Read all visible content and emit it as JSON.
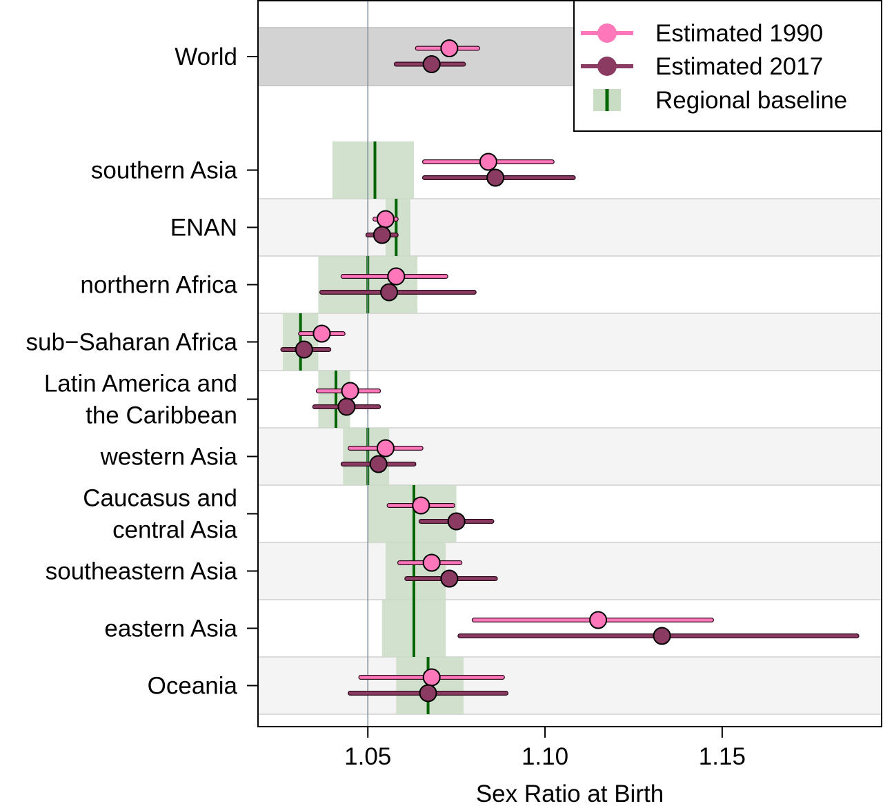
{
  "chart_data": {
    "type": "forest",
    "xlabel": "Sex Ratio at Birth",
    "xlim": [
      1.019,
      1.195
    ],
    "xticks": [
      1.05,
      1.1,
      1.15
    ],
    "xtick_labels": [
      "1.05",
      "1.10",
      "1.15"
    ],
    "reference_line": 1.05,
    "legend": {
      "position": "top-right",
      "entries": [
        "Estimated 1990",
        "Estimated 2017",
        "Regional baseline"
      ]
    },
    "colors": {
      "est1990": "#ff77bb",
      "est2017": "#8b3a62",
      "baseline_line": "#006400",
      "baseline_band": "#c9dcc4",
      "world_band": "#d3d3d3",
      "alt_band": "#f4f4f4",
      "ref_line": "#7f8c99"
    },
    "series": [
      {
        "name": "Estimated 1990",
        "key": "est1990"
      },
      {
        "name": "Estimated 2017",
        "key": "est2017"
      },
      {
        "name": "Regional baseline",
        "key": "baseline"
      }
    ],
    "regions": [
      {
        "label": [
          "World"
        ],
        "is_world": true,
        "est1990": {
          "value": 1.073,
          "lo": 1.064,
          "hi": 1.081
        },
        "est2017": {
          "value": 1.068,
          "lo": 1.058,
          "hi": 1.077
        }
      },
      {
        "label": [
          "southern Asia"
        ],
        "shade": false,
        "baseline": {
          "value": 1.052,
          "lo": 1.04,
          "hi": 1.063
        },
        "est1990": {
          "value": 1.084,
          "lo": 1.066,
          "hi": 1.102
        },
        "est2017": {
          "value": 1.086,
          "lo": 1.066,
          "hi": 1.108
        }
      },
      {
        "label": [
          "ENAN"
        ],
        "shade": true,
        "baseline": {
          "value": 1.058,
          "lo": 1.055,
          "hi": 1.062
        },
        "est1990": {
          "value": 1.055,
          "lo": 1.052,
          "hi": 1.058
        },
        "est2017": {
          "value": 1.054,
          "lo": 1.05,
          "hi": 1.058
        }
      },
      {
        "label": [
          "northern Africa"
        ],
        "shade": false,
        "baseline": {
          "value": 1.05,
          "lo": 1.036,
          "hi": 1.064
        },
        "est1990": {
          "value": 1.058,
          "lo": 1.043,
          "hi": 1.072
        },
        "est2017": {
          "value": 1.056,
          "lo": 1.037,
          "hi": 1.08
        }
      },
      {
        "label": [
          "sub−Saharan Africa"
        ],
        "shade": true,
        "baseline": {
          "value": 1.031,
          "lo": 1.026,
          "hi": 1.036
        },
        "est1990": {
          "value": 1.037,
          "lo": 1.031,
          "hi": 1.043
        },
        "est2017": {
          "value": 1.032,
          "lo": 1.026,
          "hi": 1.039
        }
      },
      {
        "label": [
          "Latin America and",
          "the Caribbean"
        ],
        "shade": false,
        "baseline": {
          "value": 1.041,
          "lo": 1.036,
          "hi": 1.045
        },
        "est1990": {
          "value": 1.045,
          "lo": 1.036,
          "hi": 1.053
        },
        "est2017": {
          "value": 1.044,
          "lo": 1.035,
          "hi": 1.053
        }
      },
      {
        "label": [
          "western Asia"
        ],
        "shade": true,
        "baseline": {
          "value": 1.05,
          "lo": 1.043,
          "hi": 1.056
        },
        "est1990": {
          "value": 1.055,
          "lo": 1.045,
          "hi": 1.065
        },
        "est2017": {
          "value": 1.053,
          "lo": 1.043,
          "hi": 1.063
        }
      },
      {
        "label": [
          "Caucasus and",
          "central Asia"
        ],
        "shade": false,
        "baseline": {
          "value": 1.063,
          "lo": 1.05,
          "hi": 1.075
        },
        "est1990": {
          "value": 1.065,
          "lo": 1.056,
          "hi": 1.074
        },
        "est2017": {
          "value": 1.075,
          "lo": 1.065,
          "hi": 1.085
        }
      },
      {
        "label": [
          "southeastern Asia"
        ],
        "shade": true,
        "baseline": {
          "value": 1.063,
          "lo": 1.055,
          "hi": 1.072
        },
        "est1990": {
          "value": 1.068,
          "lo": 1.059,
          "hi": 1.076
        },
        "est2017": {
          "value": 1.073,
          "lo": 1.061,
          "hi": 1.086
        }
      },
      {
        "label": [
          "eastern Asia"
        ],
        "shade": false,
        "baseline": {
          "value": 1.063,
          "lo": 1.054,
          "hi": 1.072
        },
        "est1990": {
          "value": 1.115,
          "lo": 1.08,
          "hi": 1.147
        },
        "est2017": {
          "value": 1.133,
          "lo": 1.076,
          "hi": 1.188
        }
      },
      {
        "label": [
          "Oceania"
        ],
        "shade": true,
        "baseline": {
          "value": 1.067,
          "lo": 1.058,
          "hi": 1.077
        },
        "est1990": {
          "value": 1.068,
          "lo": 1.048,
          "hi": 1.088
        },
        "est2017": {
          "value": 1.067,
          "lo": 1.045,
          "hi": 1.089
        }
      }
    ]
  }
}
